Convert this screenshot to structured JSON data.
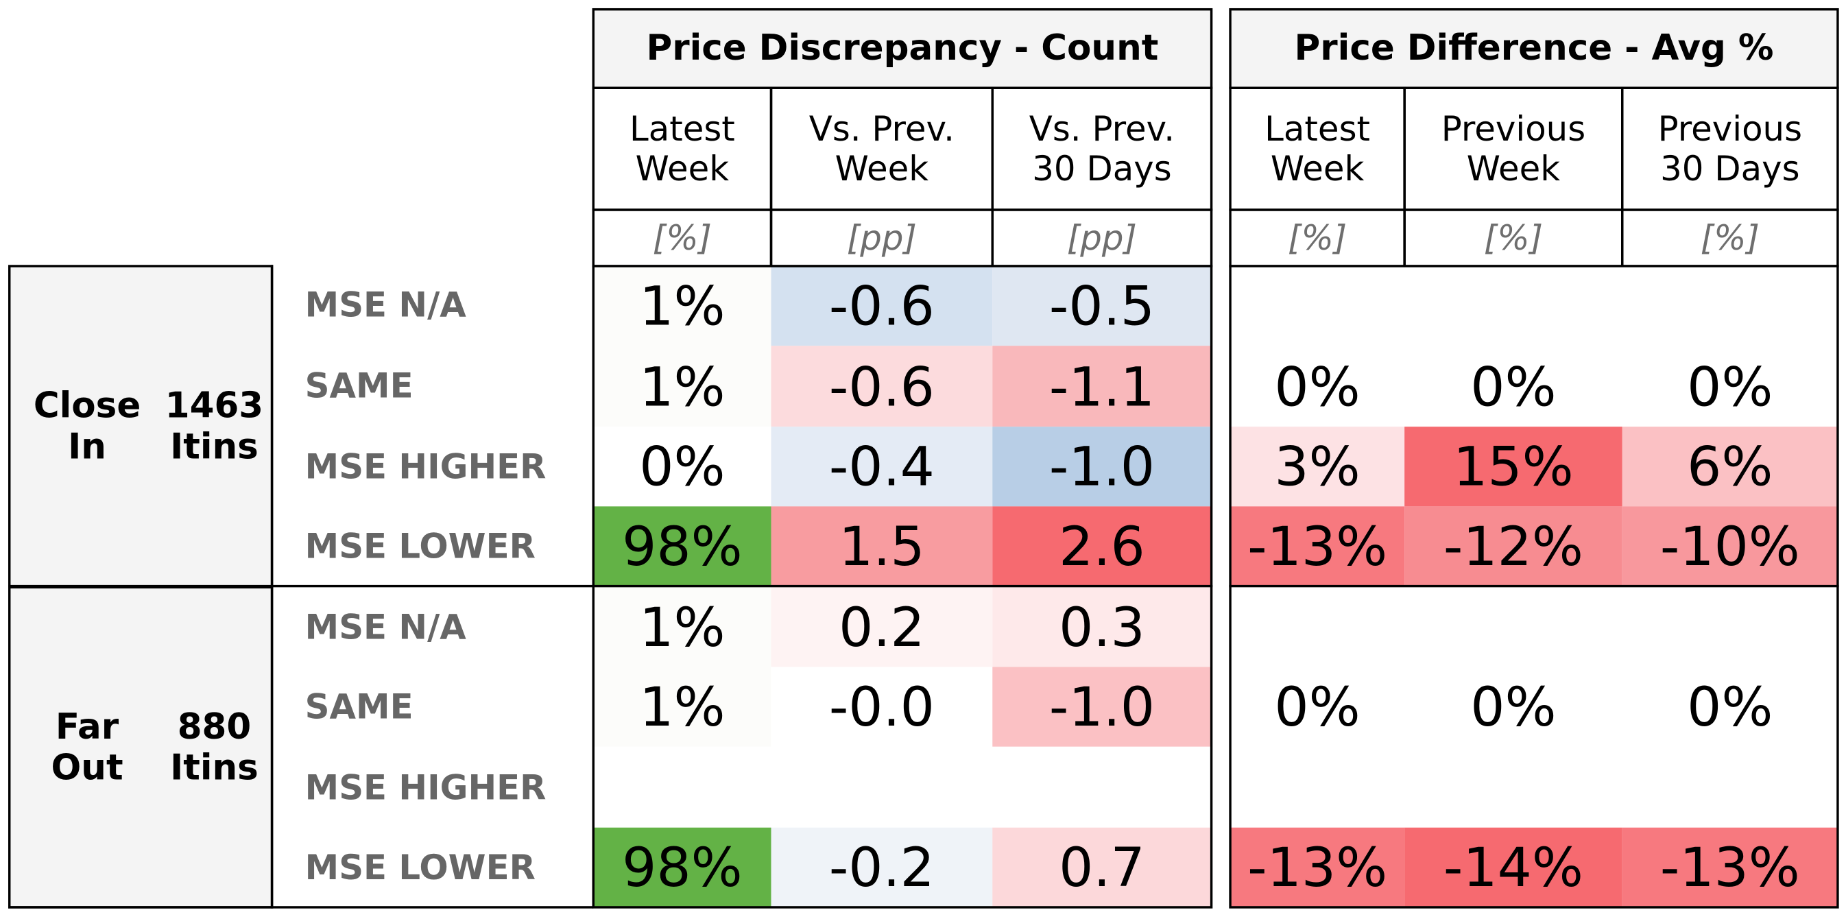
{
  "chart_data": {
    "type": "table",
    "sections": [
      {
        "title": "Price Discrepancy - Count",
        "columns": [
          {
            "label": "Latest\nWeek",
            "unit": "[%]"
          },
          {
            "label": "Vs. Prev.\nWeek",
            "unit": "[pp]"
          },
          {
            "label": "Vs. Prev.\n30 Days",
            "unit": "[pp]"
          }
        ]
      },
      {
        "title": "Price Difference - Avg %",
        "columns": [
          {
            "label": "Latest\nWeek",
            "unit": "[%]"
          },
          {
            "label": "Previous\nWeek",
            "unit": "[%]"
          },
          {
            "label": "Previous\n30 Days",
            "unit": "[%]"
          }
        ]
      }
    ],
    "groups": [
      {
        "name": "Close\nIn",
        "itins": "1463\nItins",
        "rows": [
          {
            "label": "MSE N/A",
            "count": [
              "1%",
              "-0.6",
              "-0.5"
            ],
            "avg": [
              "",
              "",
              ""
            ]
          },
          {
            "label": "SAME",
            "count": [
              "1%",
              "-0.6",
              "-1.1"
            ],
            "avg": [
              "0%",
              "0%",
              "0%"
            ]
          },
          {
            "label": "MSE HIGHER",
            "count": [
              "0%",
              "-0.4",
              "-1.0"
            ],
            "avg": [
              "3%",
              "15%",
              "6%"
            ]
          },
          {
            "label": "MSE LOWER",
            "count": [
              "98%",
              "1.5",
              "2.6"
            ],
            "avg": [
              "-13%",
              "-12%",
              "-10%"
            ]
          }
        ]
      },
      {
        "name": "Far\nOut",
        "itins": "880\nItins",
        "rows": [
          {
            "label": "MSE N/A",
            "count": [
              "1%",
              "0.2",
              "0.3"
            ],
            "avg": [
              "",
              "",
              ""
            ]
          },
          {
            "label": "SAME",
            "count": [
              "1%",
              "-0.0",
              "-1.0"
            ],
            "avg": [
              "0%",
              "0%",
              "0%"
            ]
          },
          {
            "label": "MSE HIGHER",
            "count": [
              "",
              "",
              ""
            ],
            "avg": [
              "",
              "",
              ""
            ]
          },
          {
            "label": "MSE LOWER",
            "count": [
              "98%",
              "-0.2",
              "0.7"
            ],
            "avg": [
              "-13%",
              "-14%",
              "-13%"
            ]
          }
        ]
      }
    ],
    "cell_colors": [
      [
        [
          "#fcfcfa",
          "#d4e1f0",
          "#dfe7f2",
          "#ffffff",
          "#ffffff",
          "#ffffff"
        ],
        [
          "#fcfcfa",
          "#fcdbdd",
          "#f9b8bb",
          "#ffffff",
          "#ffffff",
          "#ffffff"
        ],
        [
          "#ffffff",
          "#e4ebf5",
          "#b8cee6",
          "#fde2e4",
          "#f66a70",
          "#fbc1c4"
        ],
        [
          "#63b246",
          "#f89ca0",
          "#f66a70",
          "#f7797f",
          "#f78c91",
          "#f8989d"
        ]
      ],
      [
        [
          "#fcfcfa",
          "#fef3f3",
          "#fee9ea",
          "#ffffff",
          "#ffffff",
          "#ffffff"
        ],
        [
          "#fcfcfa",
          "#ffffff",
          "#fbc1c4",
          "#ffffff",
          "#ffffff",
          "#ffffff"
        ],
        [
          "#ffffff",
          "#ffffff",
          "#ffffff",
          "#ffffff",
          "#ffffff",
          "#ffffff"
        ],
        [
          "#63b246",
          "#eff3f8",
          "#fcd8da",
          "#f7797f",
          "#f66a70",
          "#f7797f"
        ]
      ]
    ]
  }
}
